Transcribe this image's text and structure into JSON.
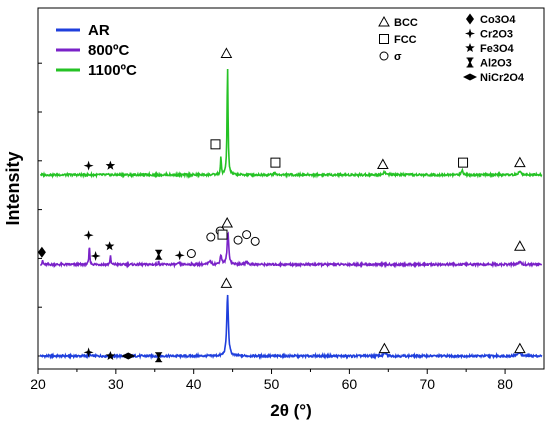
{
  "chart_data": {
    "type": "line",
    "xlabel": "2θ (°)",
    "ylabel": "Intensity",
    "xlim": [
      20,
      85
    ],
    "x_ticks": [
      20,
      30,
      40,
      50,
      60,
      70,
      80
    ],
    "grid": false,
    "legend": {
      "placement": "top-left",
      "entries": [
        {
          "name": "AR",
          "color": "#1f3fdc"
        },
        {
          "name": "800ºC",
          "color": "#7a22c8"
        },
        {
          "name": "1100ºC",
          "color": "#25c225"
        }
      ]
    },
    "phase_legend": {
      "placement": "top-right",
      "entries": [
        {
          "symbol": "triangle-open",
          "label": "BCC"
        },
        {
          "symbol": "square-open",
          "label": "FCC"
        },
        {
          "symbol": "circle-open",
          "label": "σ"
        },
        {
          "symbol": "diamond-filled",
          "label": "Co3O4"
        },
        {
          "symbol": "plus-star",
          "label": "Cr2O3"
        },
        {
          "symbol": "star-filled",
          "label": "Fe3O4"
        },
        {
          "symbol": "hourglass",
          "label": "Al2O3"
        },
        {
          "symbol": "double-triangle",
          "label": "NiCr2O4"
        }
      ]
    },
    "series": [
      {
        "name": "AR",
        "color": "#1f3fdc",
        "baseline": 0.0,
        "peaks": [
          {
            "x": 26.6,
            "h": 0.02,
            "w": 0.2
          },
          {
            "x": 31.5,
            "h": 0.02,
            "w": 0.2
          },
          {
            "x": 44.35,
            "h": 1.0,
            "w": 0.25
          },
          {
            "x": 64.6,
            "h": 0.05,
            "w": 0.4
          },
          {
            "x": 81.8,
            "h": 0.07,
            "w": 0.4
          }
        ],
        "markers": [
          {
            "x": 26.5,
            "symbol": "plus-star",
            "y": 0.06
          },
          {
            "x": 29.3,
            "symbol": "star-filled",
            "y": 0.0
          },
          {
            "x": 31.6,
            "symbol": "double-triangle",
            "y": 0.0
          },
          {
            "x": 35.5,
            "symbol": "hourglass",
            "y": -0.02
          },
          {
            "x": 44.2,
            "symbol": "triangle-open",
            "y": 1.19
          },
          {
            "x": 64.5,
            "symbol": "triangle-open",
            "y": 0.12
          },
          {
            "x": 81.9,
            "symbol": "triangle-open",
            "y": 0.12
          }
        ]
      },
      {
        "name": "800ºC",
        "color": "#7a22c8",
        "baseline": 1.5,
        "peaks": [
          {
            "x": 20.6,
            "h": 0.07,
            "w": 0.1
          },
          {
            "x": 26.6,
            "h": 0.32,
            "w": 0.12
          },
          {
            "x": 29.3,
            "h": 0.15,
            "w": 0.12
          },
          {
            "x": 35.5,
            "h": 0.04,
            "w": 0.15
          },
          {
            "x": 38.1,
            "h": 0.03,
            "w": 0.15
          },
          {
            "x": 42.1,
            "h": 0.06,
            "w": 0.3
          },
          {
            "x": 43.5,
            "h": 0.15,
            "w": 0.25
          },
          {
            "x": 44.4,
            "h": 0.52,
            "w": 0.25
          },
          {
            "x": 46.8,
            "h": 0.05,
            "w": 0.3
          },
          {
            "x": 81.9,
            "h": 0.05,
            "w": 0.3
          }
        ],
        "markers": [
          {
            "x": 20.5,
            "symbol": "diamond-filled",
            "y": 0.2
          },
          {
            "x": 26.5,
            "symbol": "plus-star",
            "y": 0.48
          },
          {
            "x": 27.4,
            "symbol": "plus-star",
            "y": 0.14
          },
          {
            "x": 29.2,
            "symbol": "star-filled",
            "y": 0.3
          },
          {
            "x": 35.5,
            "symbol": "hourglass",
            "y": 0.16
          },
          {
            "x": 38.2,
            "symbol": "plus-star",
            "y": 0.15
          },
          {
            "x": 39.7,
            "symbol": "circle-open",
            "y": 0.18
          },
          {
            "x": 42.2,
            "symbol": "circle-open",
            "y": 0.45
          },
          {
            "x": 43.4,
            "symbol": "circle-open",
            "y": 0.55
          },
          {
            "x": 43.7,
            "symbol": "square-open",
            "y": 0.49
          },
          {
            "x": 44.3,
            "symbol": "triangle-open",
            "y": 0.68
          },
          {
            "x": 45.7,
            "symbol": "circle-open",
            "y": 0.4
          },
          {
            "x": 46.8,
            "symbol": "circle-open",
            "y": 0.49
          },
          {
            "x": 47.9,
            "symbol": "circle-open",
            "y": 0.38
          },
          {
            "x": 81.9,
            "symbol": "triangle-open",
            "y": 0.3
          }
        ]
      },
      {
        "name": "1100ºC",
        "color": "#25c225",
        "baseline": 2.97,
        "peaks": [
          {
            "x": 43.5,
            "h": 0.3,
            "w": 0.12
          },
          {
            "x": 44.35,
            "h": 1.78,
            "w": 0.15
          },
          {
            "x": 50.4,
            "h": 0.03,
            "w": 0.3
          },
          {
            "x": 64.5,
            "h": 0.05,
            "w": 0.3
          },
          {
            "x": 74.5,
            "h": 0.08,
            "w": 0.25
          },
          {
            "x": 81.9,
            "h": 0.07,
            "w": 0.3
          }
        ],
        "markers": [
          {
            "x": 26.5,
            "symbol": "plus-star",
            "y": 0.15
          },
          {
            "x": 29.3,
            "symbol": "star-filled",
            "y": 0.15
          },
          {
            "x": 42.8,
            "symbol": "square-open",
            "y": 0.5
          },
          {
            "x": 44.2,
            "symbol": "triangle-open",
            "y": 1.99
          },
          {
            "x": 50.5,
            "symbol": "square-open",
            "y": 0.2
          },
          {
            "x": 64.3,
            "symbol": "triangle-open",
            "y": 0.17
          },
          {
            "x": 74.6,
            "symbol": "square-open",
            "y": 0.2
          },
          {
            "x": 81.9,
            "symbol": "triangle-open",
            "y": 0.2
          }
        ]
      }
    ]
  }
}
